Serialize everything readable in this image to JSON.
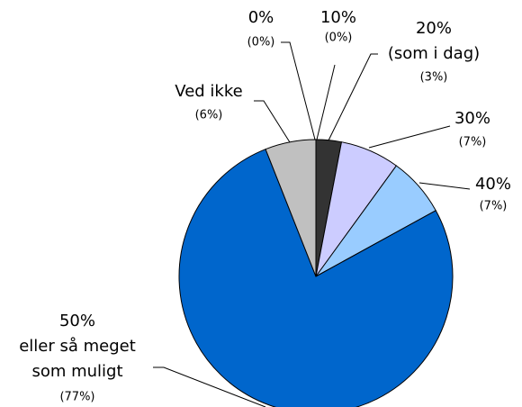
{
  "chart_data": {
    "type": "pie",
    "categories": [
      [
        "0%"
      ],
      [
        "10%"
      ],
      [
        "20%",
        "(som i dag)"
      ],
      [
        "30%"
      ],
      [
        "40%"
      ],
      [
        "50%",
        "eller så meget",
        "som muligt"
      ],
      [
        "Ved ikke"
      ]
    ],
    "values": [
      0,
      0,
      3,
      7,
      7,
      77,
      6
    ],
    "value_labels": [
      "(0%)",
      "(0%)",
      "(3%)",
      "(7%)",
      "(7%)",
      "(77%)",
      "(6%)"
    ],
    "colors": [
      "#ffffff",
      "#ffffff",
      "#333333",
      "#ccccff",
      "#99ccff",
      "#0066cc",
      "#c0c0c0"
    ]
  }
}
